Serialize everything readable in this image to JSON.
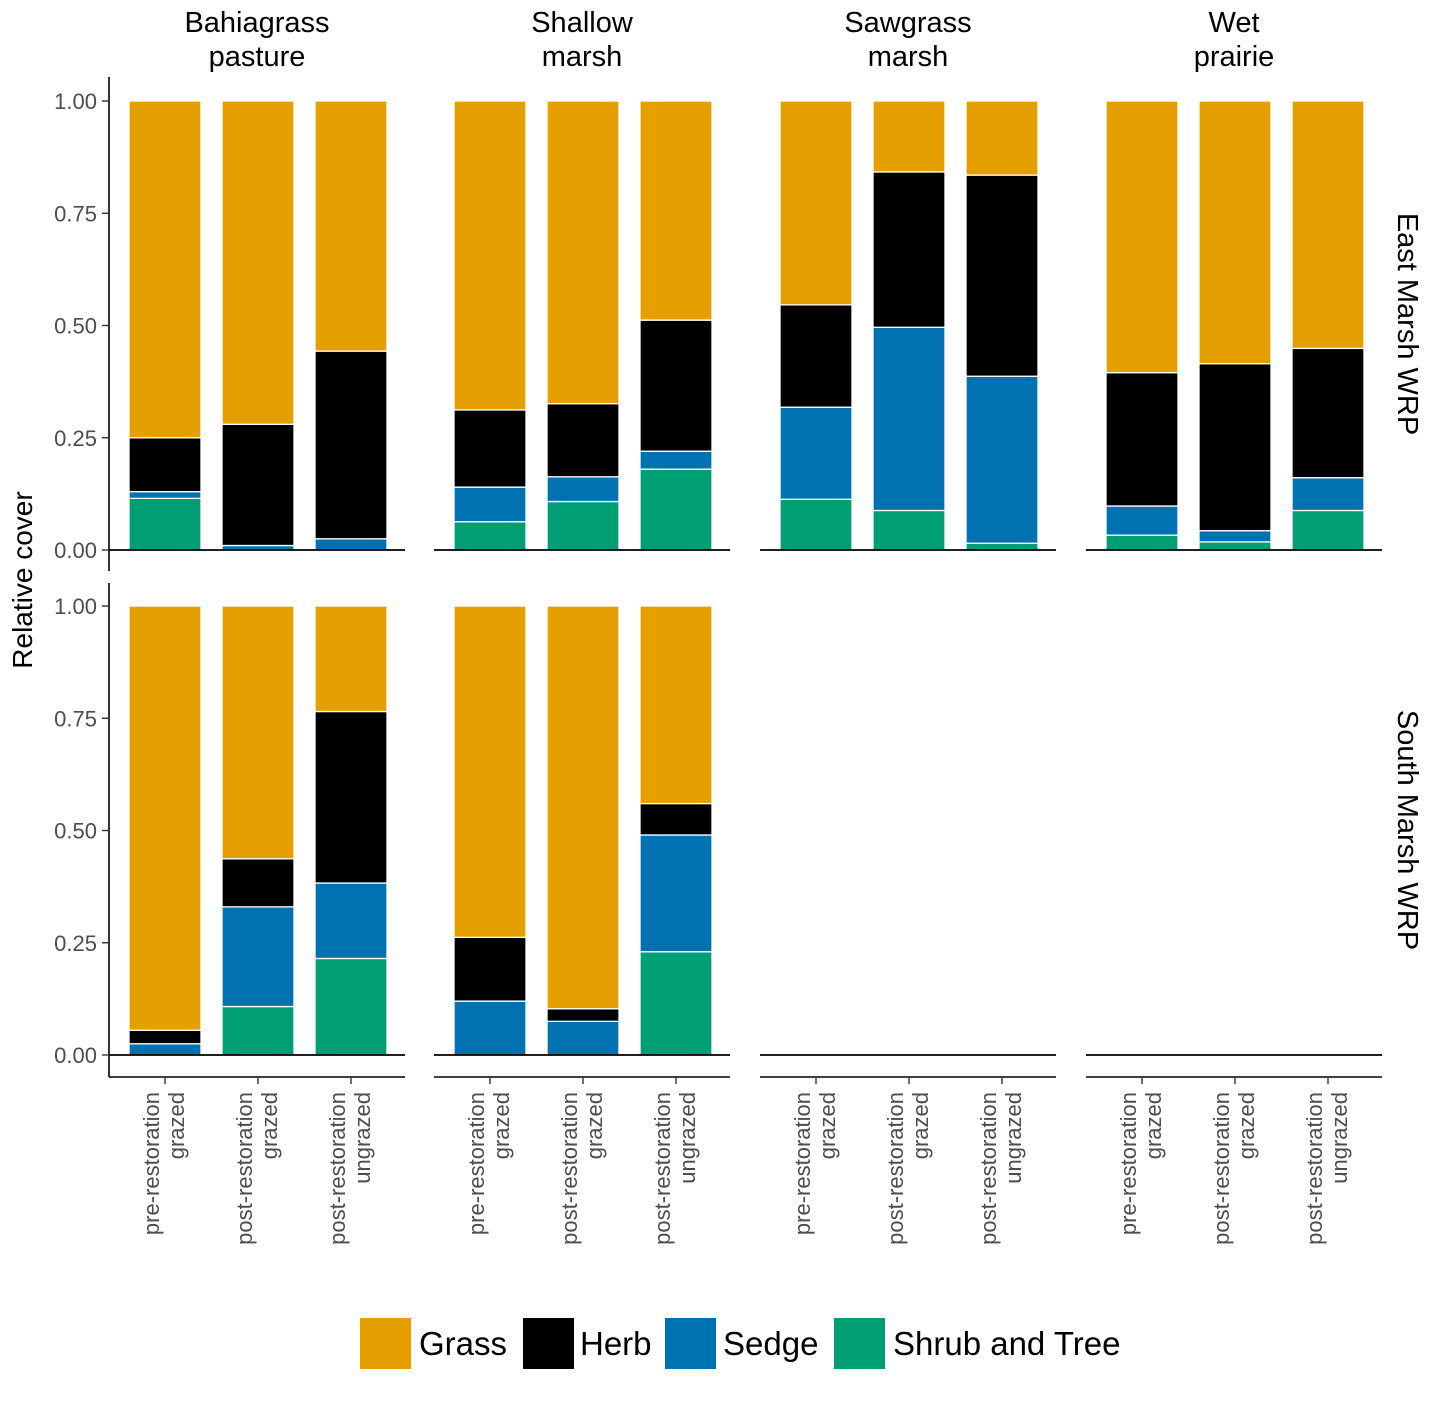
{
  "chart_data": {
    "type": "bar",
    "stacked": true,
    "ylabel": "Relative cover",
    "xlabel": "",
    "ylim": [
      0,
      1
    ],
    "yticks": [
      "0.00",
      "0.25",
      "0.50",
      "0.75",
      "1.00"
    ],
    "columns": [
      {
        "lines": [
          "Bahiagrass",
          "pasture"
        ]
      },
      {
        "lines": [
          "Shallow",
          "marsh"
        ]
      },
      {
        "lines": [
          "Sawgrass",
          "marsh"
        ]
      },
      {
        "lines": [
          "Wet",
          "prairie"
        ]
      }
    ],
    "rows": [
      {
        "label": "East Marsh WRP"
      },
      {
        "label": "South Marsh WRP"
      }
    ],
    "categories": [
      {
        "lines": [
          "pre-restoration",
          "grazed"
        ]
      },
      {
        "lines": [
          "post-restoration",
          "grazed"
        ]
      },
      {
        "lines": [
          "post-restoration",
          "ungrazed"
        ]
      }
    ],
    "series": [
      {
        "name": "Shrub and Tree",
        "color": "#009E73"
      },
      {
        "name": "Sedge",
        "color": "#0072B2"
      },
      {
        "name": "Herb",
        "color": "#000000"
      },
      {
        "name": "Grass",
        "color": "#E69F00"
      }
    ],
    "legend_order": [
      "Grass",
      "Herb",
      "Sedge",
      "Shrub and Tree"
    ],
    "legend_position": "bottom",
    "panels": [
      {
        "row": 0,
        "col": 0,
        "bars": [
          [
            0.115,
            0.015,
            0.12,
            0.75
          ],
          [
            0.0,
            0.01,
            0.27,
            0.72
          ],
          [
            0.0,
            0.025,
            0.418,
            0.557
          ]
        ]
      },
      {
        "row": 0,
        "col": 1,
        "bars": [
          [
            0.063,
            0.077,
            0.172,
            0.688
          ],
          [
            0.108,
            0.055,
            0.163,
            0.674
          ],
          [
            0.18,
            0.04,
            0.292,
            0.488
          ]
        ]
      },
      {
        "row": 0,
        "col": 2,
        "bars": [
          [
            0.113,
            0.205,
            0.228,
            0.454
          ],
          [
            0.088,
            0.408,
            0.346,
            0.158
          ],
          [
            0.015,
            0.372,
            0.448,
            0.165
          ]
        ]
      },
      {
        "row": 0,
        "col": 3,
        "bars": [
          [
            0.033,
            0.065,
            0.297,
            0.605
          ],
          [
            0.018,
            0.025,
            0.372,
            0.585
          ],
          [
            0.088,
            0.073,
            0.288,
            0.551
          ]
        ]
      },
      {
        "row": 1,
        "col": 0,
        "bars": [
          [
            0.0,
            0.025,
            0.03,
            0.945
          ],
          [
            0.108,
            0.222,
            0.107,
            0.563
          ],
          [
            0.215,
            0.168,
            0.382,
            0.235
          ]
        ]
      },
      {
        "row": 1,
        "col": 1,
        "bars": [
          [
            0.0,
            0.12,
            0.142,
            0.738
          ],
          [
            0.0,
            0.075,
            0.028,
            0.897
          ],
          [
            0.23,
            0.26,
            0.07,
            0.44
          ]
        ]
      },
      {
        "row": 1,
        "col": 2,
        "bars": []
      },
      {
        "row": 1,
        "col": 3,
        "bars": []
      }
    ]
  }
}
